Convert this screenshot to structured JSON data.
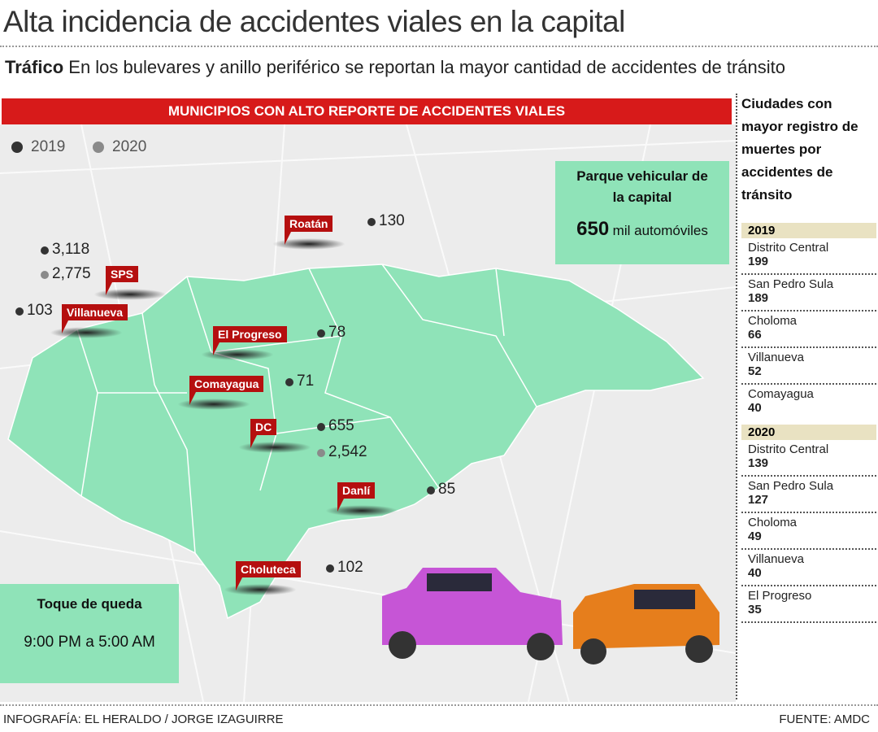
{
  "header": {
    "title": "Alta incidencia de accidentes viales en la capital",
    "lead": "Tráfico",
    "subtitle": "En los bulevares y anillo periférico se reportan la mayor cantidad de accidentes de tránsito"
  },
  "map": {
    "banner": "MUNICIPIOS CON ALTO REPORTE DE ACCIDENTES VIALES",
    "legend": [
      "2019",
      "2020"
    ],
    "markers": [
      {
        "label": "Roatán",
        "values": [
          "130"
        ]
      },
      {
        "label": "SPS",
        "values": [
          "3,118",
          "2,775"
        ]
      },
      {
        "label": "Villanueva",
        "values": [
          "103"
        ]
      },
      {
        "label": "El Progreso",
        "values": [
          "78"
        ]
      },
      {
        "label": "Comayagua",
        "values": [
          "71"
        ]
      },
      {
        "label": "DC",
        "values": [
          "655",
          "2,542"
        ]
      },
      {
        "label": "Danlí",
        "values": [
          "85"
        ]
      },
      {
        "label": "Choluteca",
        "values": [
          "102"
        ]
      }
    ],
    "fleet": {
      "title": "Parque vehicular de la capital",
      "number": "650",
      "unit": "mil automóviles"
    },
    "curfew": {
      "title": "Toque de queda",
      "text": "9:00 PM a 5:00 AM"
    }
  },
  "sidebar": {
    "title": "Ciudades con mayor registro de muertes por accidentes de tránsito",
    "groups": [
      {
        "year": "2019",
        "rows": [
          {
            "city": "Distrito Central",
            "value": "199"
          },
          {
            "city": "San Pedro Sula",
            "value": "189"
          },
          {
            "city": "Choloma",
            "value": "66"
          },
          {
            "city": "Villanueva",
            "value": "52"
          },
          {
            "city": "Comayagua",
            "value": "40"
          }
        ]
      },
      {
        "year": "2020",
        "rows": [
          {
            "city": "Distrito Central",
            "value": "139"
          },
          {
            "city": "San Pedro Sula",
            "value": "127"
          },
          {
            "city": "Choloma",
            "value": "49"
          },
          {
            "city": "Villanueva",
            "value": "40"
          },
          {
            "city": "El Progreso",
            "value": "35"
          }
        ]
      }
    ]
  },
  "footer": {
    "credit": "INFOGRAFÍA: EL HERALDO / JORGE IZAGUIRRE",
    "source": "FUENTE: AMDC"
  }
}
